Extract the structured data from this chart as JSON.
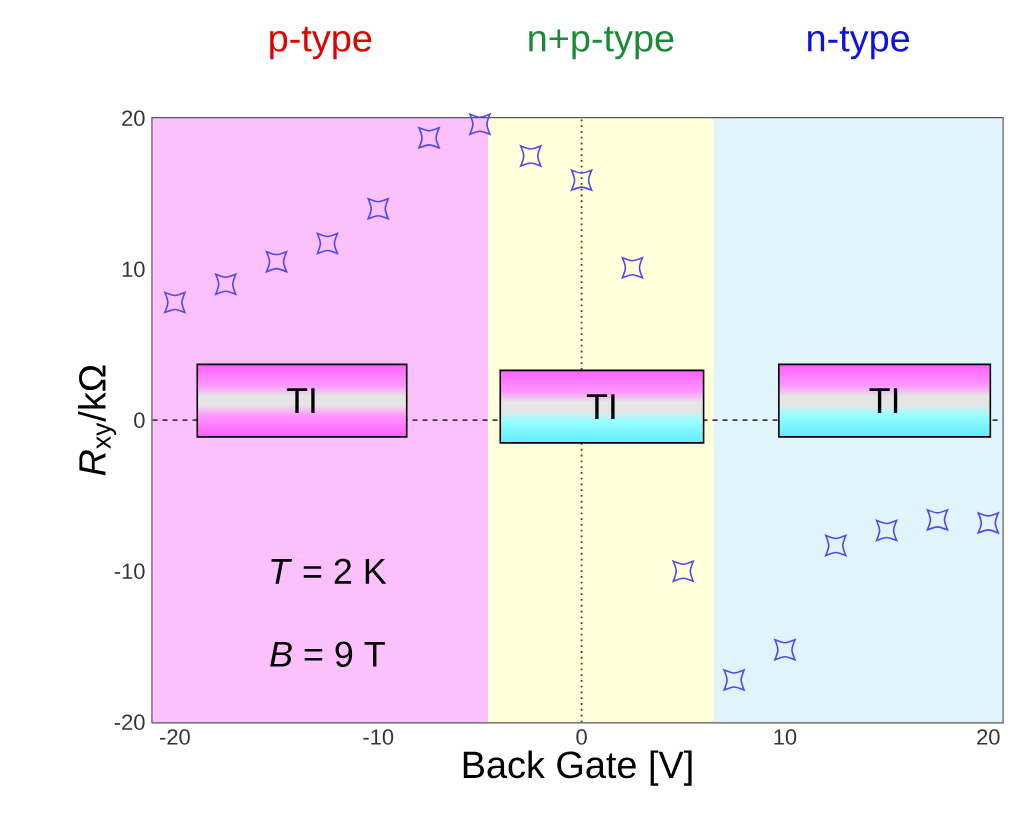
{
  "chart_data": {
    "type": "scatter",
    "xlabel": "Back Gate [V]",
    "ylabel": "*R*$_{xy}$/kΩ",
    "xlim": [
      -21.1,
      20.7
    ],
    "ylim": [
      -20,
      20
    ],
    "xticks": [
      -20,
      -10,
      0,
      10,
      20
    ],
    "yticks": [
      -20,
      -10,
      0,
      10,
      20
    ],
    "marker": "star",
    "series": [
      {
        "color": "#5048ee",
        "x": [
          -20,
          -17.5,
          -15,
          -12.5,
          -10,
          -7.5,
          -5,
          -2.5,
          0,
          2.5,
          5,
          7.5,
          10,
          12.5,
          15,
          17.5,
          20
        ],
        "values": [
          7.8,
          9.0,
          10.5,
          11.7,
          14.0,
          18.7,
          19.6,
          17.5,
          15.9,
          10.1,
          -10.0,
          -17.2,
          -15.2,
          -8.3,
          -7.3,
          -6.6,
          -6.8
        ]
      }
    ],
    "bands": [
      {
        "axis": "x",
        "from": -21.1,
        "to": -4.6,
        "label": "p-type",
        "color": "#fcc0fc"
      },
      {
        "axis": "x",
        "from": -4.6,
        "to": 6.5,
        "label": "n+p-type",
        "color": "#ffffdc"
      },
      {
        "axis": "x",
        "from": 6.5,
        "to": 20.7,
        "label": "n-type",
        "color": "#e0f4fc"
      }
    ],
    "ref_lines": [
      {
        "axis": "x",
        "value": 0,
        "line_style": "dotted"
      },
      {
        "axis": "y",
        "value": 0,
        "line_style": "dashed"
      }
    ],
    "annotations": [
      "TI",
      "TI",
      "TI",
      "*T* = 2 K",
      "*B* = 9 T"
    ]
  }
}
